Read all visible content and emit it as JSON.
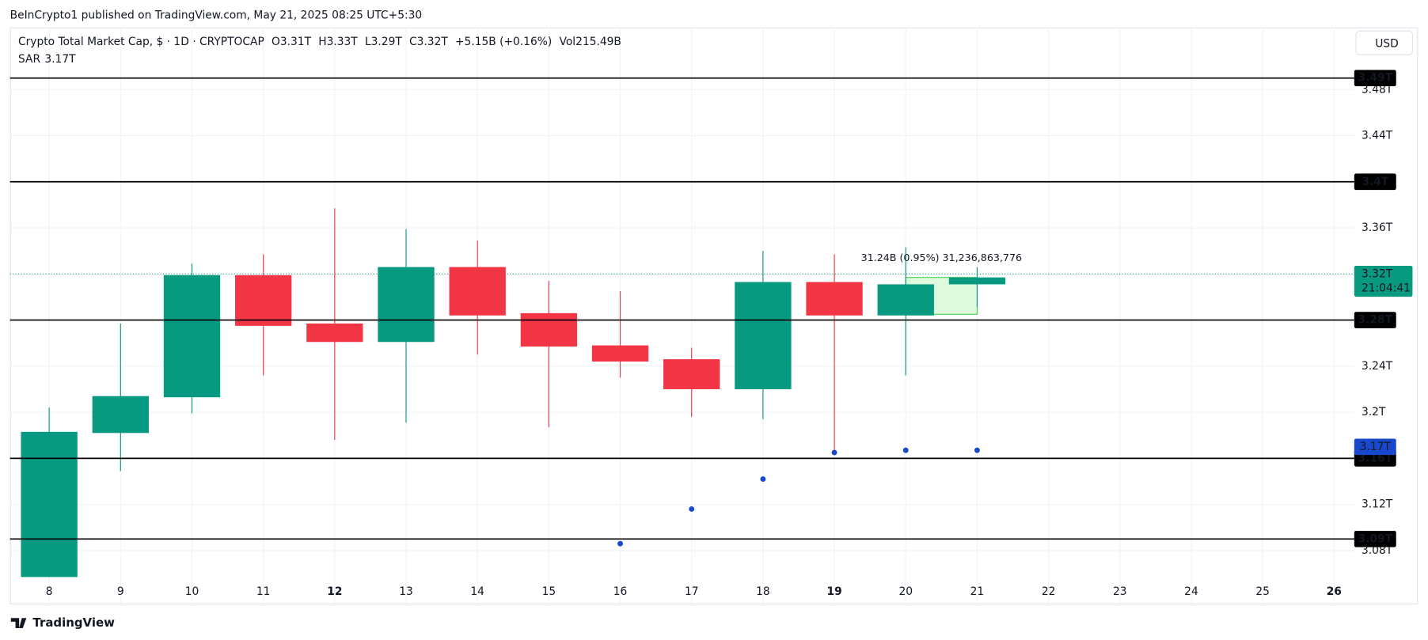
{
  "published": "BeInCrypto1 published on TradingView.com, May 21, 2025 08:25 UTC+5:30",
  "brand": "TradingView",
  "currency": "USD",
  "chart_data": {
    "type": "candlestick",
    "legend": {
      "title": "Crypto Total Market Cap, $ · 1D · CRYPTOCAP",
      "ohlc": [
        {
          "key": "O",
          "value": "3.31T"
        },
        {
          "key": "H",
          "value": "3.33T"
        },
        {
          "key": "L",
          "value": "3.29T"
        },
        {
          "key": "C",
          "value": "3.32T"
        }
      ],
      "change": "+5.15B (+0.16%)",
      "vol_key": "Vol",
      "vol": "215.49B",
      "sar_key": "SAR",
      "sar": "3.17T"
    },
    "categories": [
      "8",
      "9",
      "10",
      "11",
      "12",
      "13",
      "14",
      "15",
      "16",
      "17",
      "18",
      "19",
      "20",
      "21",
      "22",
      "23",
      "24",
      "25",
      "26"
    ],
    "open": [
      3.057,
      3.182,
      3.213,
      3.319,
      3.277,
      3.261,
      3.326,
      3.286,
      3.258,
      3.246,
      3.22,
      3.313,
      3.284,
      3.311,
      null,
      null,
      null,
      null,
      null
    ],
    "high": [
      3.204,
      3.277,
      3.329,
      3.337,
      3.377,
      3.359,
      3.349,
      3.314,
      3.305,
      3.256,
      3.34,
      3.337,
      3.343,
      3.326,
      null,
      null,
      null,
      null,
      null
    ],
    "low": [
      3.057,
      3.149,
      3.199,
      3.232,
      3.176,
      3.191,
      3.25,
      3.187,
      3.23,
      3.196,
      3.194,
      3.165,
      3.232,
      3.291,
      null,
      null,
      null,
      null,
      null
    ],
    "close": [
      3.183,
      3.214,
      3.319,
      3.275,
      3.261,
      3.326,
      3.284,
      3.257,
      3.244,
      3.22,
      3.313,
      3.284,
      3.311,
      3.317,
      null,
      null,
      null,
      null,
      null
    ],
    "up_color": "#089981",
    "down_color": "#f23645",
    "sar": {
      "name": "SAR",
      "color": "#1848cc",
      "values": [
        null,
        null,
        null,
        null,
        null,
        null,
        null,
        null,
        3.086,
        3.116,
        3.142,
        3.165,
        3.167,
        3.167,
        null,
        null,
        null,
        null,
        null
      ]
    },
    "ylim": [
      3.034,
      3.534
    ],
    "yticks": [
      {
        "value": 3.08,
        "label": "3.08T"
      },
      {
        "value": 3.12,
        "label": "3.12T"
      },
      {
        "value": 3.2,
        "label": "3.2T"
      },
      {
        "value": 3.24,
        "label": "3.24T"
      },
      {
        "value": 3.36,
        "label": "3.36T"
      },
      {
        "value": 3.44,
        "label": "3.44T"
      },
      {
        "value": 3.48,
        "label": "3.48T"
      }
    ],
    "grid": true,
    "levels": [
      {
        "value": 3.49,
        "label": "3.49T"
      },
      {
        "value": 3.4,
        "label": "3.4T"
      },
      {
        "value": 3.28,
        "label": "3.28T"
      },
      {
        "value": 3.16,
        "label": "3.16T"
      },
      {
        "value": 3.09,
        "label": "3.09T"
      }
    ],
    "price_label": {
      "value": 3.32,
      "label": "3.32T",
      "countdown": "21:04:41"
    },
    "sar_label": {
      "value": 3.17,
      "label": "3.17T"
    },
    "measure": {
      "text": "31.24B (0.95%) 31,236,863,776",
      "range": [
        3.285,
        3.317
      ]
    }
  }
}
